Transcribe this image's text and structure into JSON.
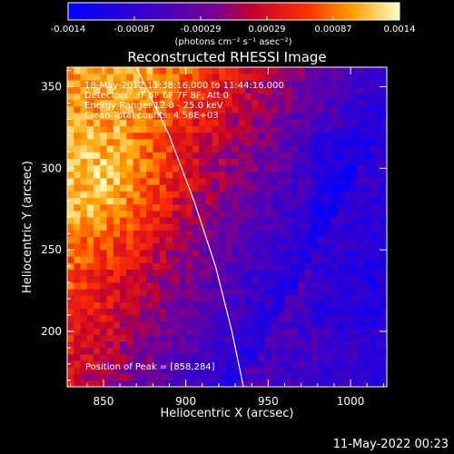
{
  "chart_data": {
    "type": "heatmap",
    "title": "Reconstructed RHESSI Image",
    "xlabel": "Heliocentric X (arcsec)",
    "ylabel": "Heliocentric Y (arcsec)",
    "xlim": [
      828,
      1022
    ],
    "ylim": [
      166,
      362
    ],
    "x_ticks": [
      850,
      900,
      950,
      1000
    ],
    "y_ticks": [
      200,
      250,
      300,
      350
    ],
    "colorbar": {
      "range": [
        -0.0014,
        0.0014
      ],
      "ticks": [
        "-0.0014",
        "-0.00087",
        "-0.00029",
        "0.00029",
        "0.00087",
        "0.0014"
      ],
      "unit_label": "(photons cm⁻² s⁻¹ asec⁻²)"
    },
    "annotations": [
      "18-May-2012 11:38:16.000 to 11:44:16.000",
      "Detectors: 3F 5F 6F 7F 8F, Att 0",
      "Energy Range: 12.0 - 25.0 keV",
      "Clean     Total counts: 4.58E+03"
    ],
    "peak_label": "Position of Peak = [858,284]",
    "peak": [
      858,
      284
    ],
    "limb_arc": [
      [
        870,
        362
      ],
      [
        890,
        320
      ],
      [
        905,
        280
      ],
      [
        918,
        240
      ],
      [
        928,
        200
      ],
      [
        935,
        166
      ]
    ]
  },
  "footer": {
    "date": "11-May-2022 00:23"
  }
}
